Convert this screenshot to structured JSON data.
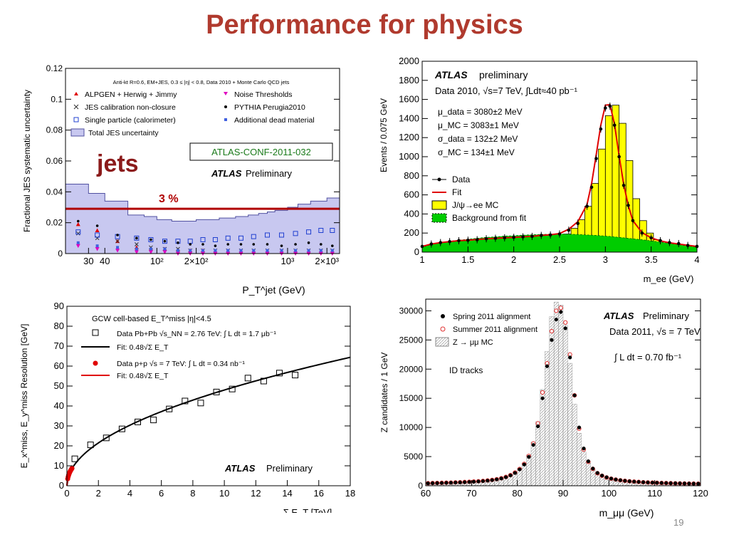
{
  "slide": {
    "title": "Performance for physics",
    "page_number": "19"
  },
  "colors": {
    "title": "#b03a2e",
    "jes_band": "#c8c8f0",
    "jpsi_fill": "#ffff00",
    "bkg_fill": "#00cc00",
    "fit": "#e00000"
  },
  "chart_data": [
    {
      "type": "area",
      "name_key": "jes",
      "header": "Anti-kt R=0.6, EM+JES, 0.3 ≤ |η| < 0.8, Data 2010 + Monte Carlo QCD jets",
      "ylabel": "Fractional JES systematic uncertainty",
      "xlabel": "P_T^jet (GeV)",
      "xscale": "log",
      "xlim": [
        20,
        2500
      ],
      "ylim": [
        0,
        0.12
      ],
      "yticks": [
        0,
        0.02,
        0.04,
        0.06,
        0.08,
        0.1,
        0.12
      ],
      "ytick_labels": [
        "0",
        "0.02",
        "0.04",
        "0.06",
        "0.08",
        "0.1",
        "0.12"
      ],
      "xticks": [
        30,
        40,
        100,
        200,
        1000,
        2000
      ],
      "xtick_labels": [
        "30",
        "40",
        "10²",
        "2×10²",
        "10³",
        "2×10³"
      ],
      "legend": [
        "ALPGEN + Herwig + Jimmy",
        "JES calibration non-closure",
        "Single particle (calorimeter)",
        "Total JES uncertainty",
        "Noise Thresholds",
        "PYTHIA Perugia2010",
        "Additional dead material"
      ],
      "annotations": {
        "tag": "jets",
        "conf": "ATLAS-CONF-2011-032",
        "atlas": "ATLAS",
        "prelim": "Preliminary",
        "line_label": "3 %"
      },
      "reference_line": 0.029,
      "total_band": {
        "x": [
          20,
          30,
          40,
          60,
          80,
          100,
          130,
          160,
          200,
          250,
          300,
          350,
          400,
          500,
          600,
          700,
          800,
          1000,
          1200,
          1500,
          2000,
          2500
        ],
        "y": [
          0.045,
          0.039,
          0.034,
          0.025,
          0.024,
          0.022,
          0.021,
          0.021,
          0.022,
          0.022,
          0.023,
          0.023,
          0.024,
          0.025,
          0.026,
          0.027,
          0.028,
          0.03,
          0.032,
          0.034,
          0.036,
          0.038
        ]
      },
      "points_x": [
        25,
        35,
        50,
        70,
        90,
        115,
        145,
        180,
        225,
        280,
        350,
        440,
        550,
        700,
        900,
        1150,
        1450,
        1800,
        2200
      ],
      "series": [
        {
          "name": "ALPGEN + Herwig + Jimmy",
          "color": "#e00000",
          "marker": "triangle",
          "values": [
            0.019,
            0.015,
            0.008,
            0.004,
            0.003,
            0.003,
            0.002,
            0.002,
            0.002,
            0.001,
            0.001,
            0.001,
            0.001,
            0.001,
            0.001,
            0.001,
            0.001,
            0.001,
            0.001
          ]
        },
        {
          "name": "JES calibration non-closure",
          "color": "#333333",
          "marker": "x",
          "values": [
            0.013,
            0.01,
            0.008,
            0.006,
            0.004,
            0.003,
            0.003,
            0.002,
            0.002,
            0.002,
            0.002,
            0.002,
            0.002,
            0.002,
            0.002,
            0.002,
            0.002,
            0.002,
            0.002
          ]
        },
        {
          "name": "Single particle (calorimeter)",
          "color": "#2040d0",
          "marker": "square",
          "values": [
            0.014,
            0.012,
            0.011,
            0.01,
            0.009,
            0.008,
            0.008,
            0.008,
            0.009,
            0.009,
            0.01,
            0.01,
            0.011,
            0.012,
            0.012,
            0.013,
            0.014,
            0.015,
            0.015
          ]
        },
        {
          "name": "Noise Thresholds",
          "color": "#e000c0",
          "marker": "tri_down",
          "values": [
            0.005,
            0.003,
            0.002,
            0.001,
            0.001,
            0.001,
            0.0,
            0.0,
            0.0,
            0.0,
            0.0,
            0.0,
            0.0,
            0.0,
            0.0,
            0.0,
            0.0,
            0.0,
            0.0
          ]
        },
        {
          "name": "PYTHIA Perugia2010",
          "color": "#000000",
          "marker": "dot",
          "values": [
            0.021,
            0.018,
            0.012,
            0.01,
            0.009,
            0.008,
            0.007,
            0.006,
            0.006,
            0.005,
            0.006,
            0.006,
            0.006,
            0.006,
            0.005,
            0.006,
            0.007,
            0.006,
            0.005
          ]
        },
        {
          "name": "Additional dead material",
          "color": "#4060e0",
          "marker": "smallsquare",
          "values": [
            0.007,
            0.005,
            0.004,
            0.003,
            0.003,
            0.003,
            0.002,
            0.002,
            0.002,
            0.002,
            0.002,
            0.002,
            0.002,
            0.002,
            0.002,
            0.002,
            0.002,
            0.002,
            0.002
          ]
        }
      ]
    },
    {
      "type": "bar",
      "name_key": "jpsi",
      "ylabel": "Events / 0.075 GeV",
      "xlabel": "m_ee (GeV)",
      "xlim": [
        1,
        4
      ],
      "ylim": [
        0,
        2000
      ],
      "xticks": [
        1,
        1.5,
        2,
        2.5,
        3,
        3.5,
        4
      ],
      "xtick_labels": [
        "1",
        "1.5",
        "2",
        "2.5",
        "3",
        "3.5",
        "4"
      ],
      "yticks": [
        0,
        200,
        400,
        600,
        800,
        1000,
        1200,
        1400,
        1600,
        1800,
        2000
      ],
      "ytick_labels": [
        "0",
        "200",
        "400",
        "600",
        "800",
        "1000",
        "1200",
        "1400",
        "1600",
        "1800",
        "2000"
      ],
      "annotations": {
        "atlas": "ATLAS",
        "prelim": "preliminary",
        "data_line": "Data 2010, √s=7 TeV, ∫Ldt≈40 pb⁻¹",
        "params": [
          "μ_data = 3080±2 MeV",
          "μ_MC = 3083±1 MeV",
          "σ_data = 132±2 MeV",
          "σ_MC = 134±1 MeV"
        ]
      },
      "legend": [
        "Data",
        "Fit",
        "J/ψ→ee MC",
        "Background from fit"
      ],
      "bin_edges_start": 2.55,
      "bin_width": 0.075,
      "mc_bins": [
        190,
        250,
        340,
        480,
        720,
        1080,
        1430,
        1540,
        1350,
        960,
        560,
        330,
        200,
        130
      ],
      "x": [
        1.0,
        1.1,
        1.2,
        1.3,
        1.4,
        1.5,
        1.6,
        1.7,
        1.8,
        1.9,
        2.0,
        2.1,
        2.2,
        2.3,
        2.4,
        2.5,
        2.6,
        2.7,
        2.8,
        2.85,
        2.9,
        2.95,
        3.0,
        3.05,
        3.1,
        3.15,
        3.2,
        3.25,
        3.3,
        3.4,
        3.5,
        3.6,
        3.7,
        3.8,
        3.9,
        4.0
      ],
      "data": [
        60,
        85,
        100,
        110,
        120,
        125,
        130,
        140,
        145,
        150,
        155,
        160,
        165,
        175,
        180,
        190,
        230,
        300,
        480,
        680,
        980,
        1290,
        1510,
        1530,
        1330,
        1000,
        700,
        490,
        330,
        200,
        150,
        120,
        100,
        90,
        70,
        60
      ],
      "fit": [
        60,
        85,
        100,
        110,
        120,
        125,
        132,
        140,
        145,
        150,
        155,
        160,
        165,
        175,
        182,
        195,
        240,
        320,
        500,
        720,
        1020,
        1330,
        1540,
        1545,
        1340,
        1010,
        710,
        490,
        330,
        205,
        150,
        118,
        98,
        85,
        72,
        60
      ],
      "background": [
        50,
        80,
        100,
        115,
        125,
        135,
        145,
        155,
        160,
        168,
        172,
        178,
        182,
        185,
        188,
        190,
        188,
        185,
        180,
        178,
        175,
        172,
        168,
        165,
        160,
        155,
        150,
        145,
        140,
        130,
        118,
        105,
        92,
        78,
        65,
        52
      ]
    },
    {
      "type": "scatter",
      "name_key": "met",
      "header": "GCW cell-based E_T^miss |η|<4.5",
      "ylabel": "E_x^miss, E_y^miss Resolution [GeV]",
      "xlabel": "Σ E_T  [TeV]",
      "xlim": [
        0,
        18
      ],
      "ylim": [
        0,
        90
      ],
      "xticks": [
        0,
        2,
        4,
        6,
        8,
        10,
        12,
        14,
        16,
        18
      ],
      "xtick_labels": [
        "0",
        "2",
        "4",
        "6",
        "8",
        "10",
        "12",
        "14",
        "16",
        "18"
      ],
      "yticks": [
        0,
        10,
        20,
        30,
        40,
        50,
        60,
        70,
        80,
        90
      ],
      "ytick_labels": [
        "0",
        "10",
        "20",
        "30",
        "40",
        "50",
        "60",
        "70",
        "80",
        "90"
      ],
      "legend": [
        "Data Pb+Pb √s_NN = 2.76 TeV: ∫ L dt = 1.7 μb⁻¹",
        "Fit: 0.48√Σ E_T",
        "Data p+p √s = 7 TeV: ∫ L dt = 0.34 nb⁻¹",
        "Fit: 0.48√Σ E_T"
      ],
      "annotations": {
        "atlas": "ATLAS",
        "prelim": "Preliminary"
      },
      "fit_coefficient": 0.48,
      "series": [
        {
          "name": "Data Pb+Pb",
          "marker": "open-square",
          "x": [
            0.5,
            1.5,
            2.5,
            3.5,
            4.5,
            5.5,
            6.5,
            7.5,
            8.5,
            9.5,
            10.5,
            11.5,
            12.5,
            13.5,
            14.5
          ],
          "y": [
            13.5,
            20.5,
            24,
            28.5,
            32,
            33,
            38.5,
            42.5,
            41.5,
            47,
            48.5,
            54,
            52.5,
            56.5,
            55.5
          ]
        },
        {
          "name": "Data p+p",
          "marker": "red-dot",
          "x": [
            0.05,
            0.08,
            0.11,
            0.14,
            0.17,
            0.2,
            0.24,
            0.28,
            0.32
          ],
          "y": [
            3.5,
            4.5,
            5.3,
            6,
            6.6,
            7.1,
            7.7,
            8.2,
            8.7
          ]
        }
      ]
    },
    {
      "type": "bar",
      "name_key": "zmumu",
      "ylabel": "Z candidates / 1 GeV",
      "xlabel": "m_μμ (GeV)",
      "xlim": [
        60,
        120
      ],
      "ylim": [
        0,
        32000
      ],
      "xticks": [
        60,
        70,
        80,
        90,
        100,
        110,
        120
      ],
      "xtick_labels": [
        "60",
        "70",
        "80",
        "90",
        "100",
        "110",
        "120"
      ],
      "yticks": [
        0,
        5000,
        10000,
        15000,
        20000,
        25000,
        30000
      ],
      "ytick_labels": [
        "0",
        "5000",
        "10000",
        "15000",
        "20000",
        "25000",
        "30000"
      ],
      "legend": [
        "Spring 2011 alignment",
        "Summer 2011 alignment",
        "Z → μμ MC"
      ],
      "annotations": {
        "atlas": "ATLAS",
        "prelim": "Preliminary",
        "data_line": "Data 2011, √s = 7 TeV",
        "lumi": "∫ L dt = 0.70 fb⁻¹",
        "tracks": "ID tracks"
      },
      "x": [
        60.5,
        61.5,
        62.5,
        63.5,
        64.5,
        65.5,
        66.5,
        67.5,
        68.5,
        69.5,
        70.5,
        71.5,
        72.5,
        73.5,
        74.5,
        75.5,
        76.5,
        77.5,
        78.5,
        79.5,
        80.5,
        81.5,
        82.5,
        83.5,
        84.5,
        85.5,
        86.5,
        87.5,
        88.5,
        89.5,
        90.5,
        91.5,
        92.5,
        93.5,
        94.5,
        95.5,
        96.5,
        97.5,
        98.5,
        99.5,
        100.5,
        101.5,
        102.5,
        103.5,
        104.5,
        105.5,
        106.5,
        107.5,
        108.5,
        109.5,
        110.5,
        111.5,
        112.5,
        113.5,
        114.5,
        115.5,
        116.5,
        117.5,
        118.5,
        119.5
      ],
      "mc": [
        450,
        470,
        490,
        510,
        530,
        560,
        590,
        620,
        660,
        700,
        750,
        800,
        870,
        950,
        1050,
        1180,
        1350,
        1580,
        1900,
        2350,
        3000,
        3900,
        5300,
        7500,
        11000,
        16500,
        23000,
        29000,
        31500,
        31000,
        27500,
        21000,
        14000,
        9000,
        5800,
        3900,
        2800,
        2100,
        1700,
        1400,
        1200,
        1050,
        930,
        830,
        760,
        700,
        650,
        600,
        560,
        530,
        500,
        480,
        460,
        440,
        420,
        405,
        390,
        375,
        360,
        350
      ],
      "spring": [
        420,
        440,
        460,
        480,
        500,
        520,
        550,
        580,
        610,
        650,
        690,
        740,
        800,
        880,
        970,
        1090,
        1250,
        1470,
        1780,
        2200,
        2800,
        3650,
        4950,
        7000,
        10200,
        15000,
        20500,
        25000,
        28500,
        29800,
        27000,
        22000,
        15500,
        10000,
        6400,
        4200,
        2950,
        2200,
        1750,
        1450,
        1230,
        1070,
        950,
        850,
        770,
        710,
        660,
        610,
        570,
        540,
        510,
        485,
        465,
        445,
        425,
        410,
        395,
        380,
        365,
        350
      ],
      "summer": [
        440,
        460,
        480,
        500,
        520,
        545,
        575,
        605,
        640,
        680,
        720,
        770,
        830,
        910,
        1000,
        1120,
        1290,
        1510,
        1820,
        2260,
        2880,
        3750,
        5100,
        7250,
        10700,
        16000,
        21000,
        26500,
        30000,
        30500,
        28000,
        22500,
        15500,
        9800,
        6200,
        4100,
        2900,
        2150,
        1720,
        1420,
        1210,
        1060,
        940,
        840,
        765,
        705,
        655,
        605,
        565,
        535,
        505,
        483,
        462,
        442,
        422,
        407,
        392,
        377,
        362,
        348
      ]
    }
  ]
}
